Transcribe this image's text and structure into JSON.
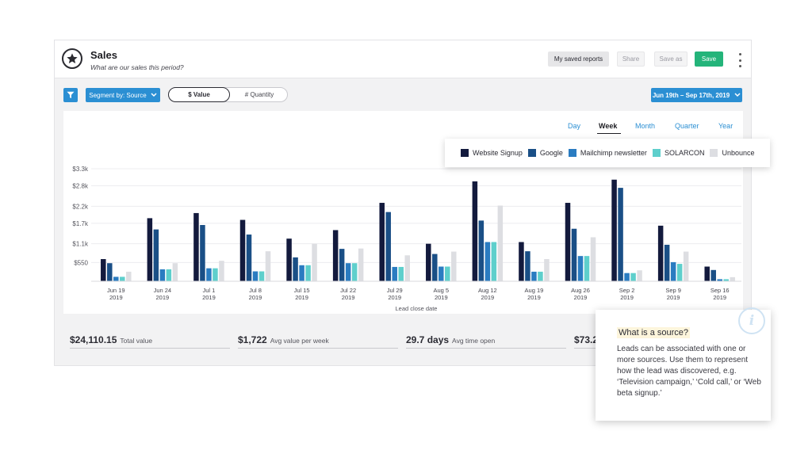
{
  "header": {
    "title": "Sales",
    "subtitle": "What are our sales this period?",
    "buttons": {
      "saved_reports": "My saved reports",
      "share": "Share",
      "save_as": "Save as",
      "save": "Save"
    }
  },
  "toolbar": {
    "segment_label": "Segment by: Source",
    "toggle_value": "$ Value",
    "toggle_quantity": "# Quantity",
    "date_range": "Jun 19th – Sep 17th, 2019"
  },
  "period_tabs": [
    "Day",
    "Week",
    "Month",
    "Quarter",
    "Year"
  ],
  "active_period": "Week",
  "kpis": [
    {
      "value": "$24,110.15",
      "label": "Total value"
    },
    {
      "value": "$1,722",
      "label": "Avg value per week"
    },
    {
      "value": "29.7 days",
      "label": "Avg time open"
    },
    {
      "value": "$73.2",
      "label": ""
    }
  ],
  "popup": {
    "title": "What is a source?",
    "body": "Leads can be associated with one or more sources. Use them to represent how the lead was discovered, e.g. ‘Television campaign,’ ‘Cold call,’ or ‘Web beta signup.’"
  },
  "colors": {
    "accent": "#2b8fd3",
    "save": "#24b47a"
  },
  "chart_data": {
    "type": "bar",
    "xlabel": "Lead close date",
    "ylabel": "",
    "ylim": [
      0,
      3300
    ],
    "yticks": [
      550,
      1100,
      1700,
      2200,
      2800,
      3300
    ],
    "ytick_labels": [
      "$550",
      "$1.1k",
      "$1.7k",
      "$2.2k",
      "$2.8k",
      "$3.3k"
    ],
    "grid": true,
    "legend_position": "top-right",
    "categories": [
      [
        "Jun 19",
        "2019"
      ],
      [
        "Jun 24",
        "2019"
      ],
      [
        "Jul 1",
        "2019"
      ],
      [
        "Jul 8",
        "2019"
      ],
      [
        "Jul 15",
        "2019"
      ],
      [
        "Jul 22",
        "2019"
      ],
      [
        "Jul 29",
        "2019"
      ],
      [
        "Aug 5",
        "2019"
      ],
      [
        "Aug 12",
        "2019"
      ],
      [
        "Aug 19",
        "2019"
      ],
      [
        "Aug 26",
        "2019"
      ],
      [
        "Sep 2",
        "2019"
      ],
      [
        "Sep 9",
        "2019"
      ],
      [
        "Sep 16",
        "2019"
      ]
    ],
    "series": [
      {
        "name": "Website Signup",
        "color": "#131a3d",
        "values": [
          650,
          1850,
          2000,
          1800,
          1250,
          1500,
          2300,
          1100,
          2930,
          1150,
          2300,
          2980,
          1630,
          430
        ]
      },
      {
        "name": "Google",
        "color": "#1a4f86",
        "values": [
          530,
          1520,
          1650,
          1370,
          700,
          950,
          2030,
          800,
          1780,
          880,
          1540,
          2740,
          1070,
          330
        ]
      },
      {
        "name": "Mailchimp newsletter",
        "color": "#2a7cc1",
        "values": [
          130,
          350,
          380,
          290,
          470,
          530,
          420,
          430,
          1150,
          280,
          740,
          240,
          560,
          60
        ]
      },
      {
        "name": "SOLARCON",
        "color": "#5ecfcc",
        "values": [
          130,
          350,
          380,
          290,
          470,
          530,
          420,
          430,
          1150,
          280,
          740,
          240,
          510,
          60
        ]
      },
      {
        "name": "Unbounce",
        "color": "#dddee2",
        "values": [
          280,
          530,
          600,
          880,
          1100,
          960,
          760,
          870,
          2220,
          650,
          1290,
          320,
          870,
          120
        ]
      }
    ]
  }
}
